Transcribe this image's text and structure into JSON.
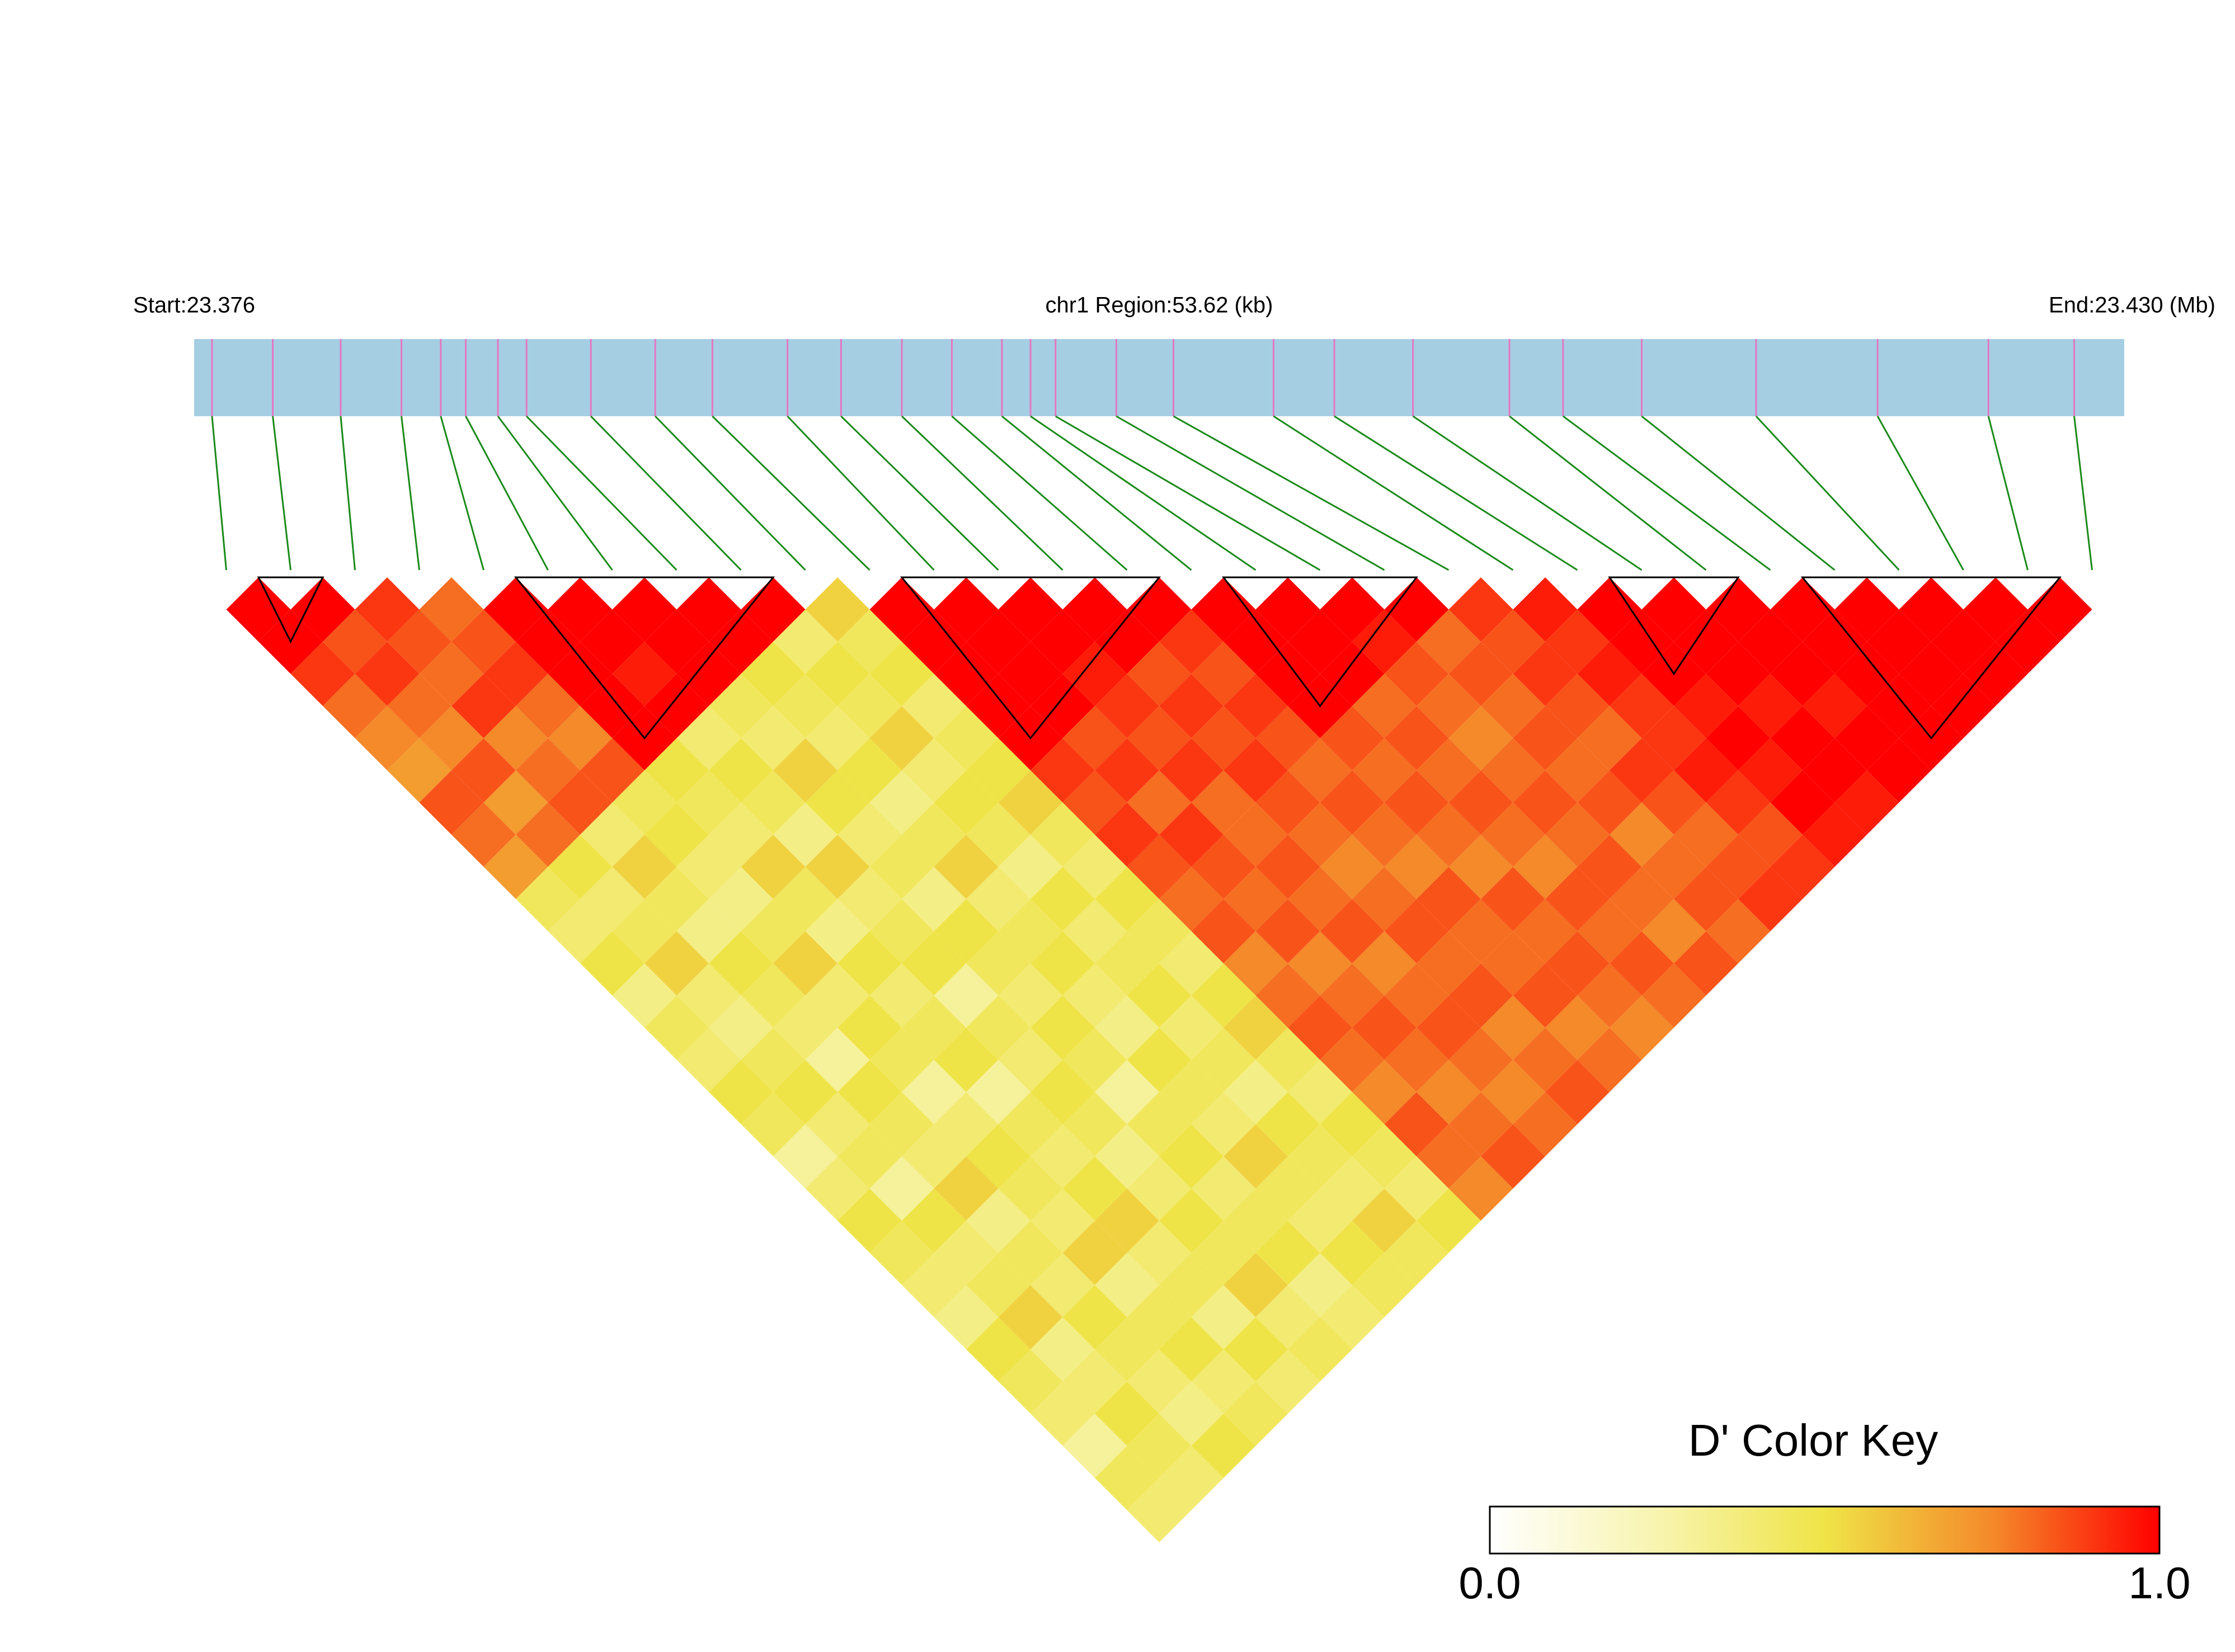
{
  "chart_data": {
    "type": "heatmap",
    "start_label": "Start:23.376",
    "region_label": "chr1 Region:53.62 (kb)",
    "end_label": "End:23.430 (Mb)",
    "xlim": [
      23.376,
      23.43
    ],
    "positions": [
      23.3765,
      23.3782,
      23.3801,
      23.3818,
      23.3829,
      23.3836,
      23.3845,
      23.3853,
      23.3871,
      23.3889,
      23.3905,
      23.3926,
      23.3941,
      23.3958,
      23.3972,
      23.3986,
      23.3994,
      23.4001,
      23.4018,
      23.4034,
      23.4062,
      23.4079,
      23.4101,
      23.4128,
      23.4143,
      23.4165,
      23.4197,
      23.4231,
      23.4262,
      23.4286
    ],
    "dprime": [
      [
        1,
        1,
        0.9,
        0.8,
        0.75,
        0.7,
        0.85,
        0.8,
        0.7,
        0.45,
        0.4,
        0.5,
        0.35,
        0.45,
        0.4,
        0.5,
        0.45,
        0.3,
        0.4,
        0.5,
        0.45,
        0.4,
        0.35,
        0.5,
        0.45,
        0.4,
        0.3,
        0.45,
        0.4
      ],
      [
        1,
        0.85,
        0.9,
        0.8,
        0.75,
        0.85,
        0.7,
        0.8,
        0.5,
        0.4,
        0.45,
        0.55,
        0.4,
        0.35,
        0.45,
        0.5,
        0.4,
        0.45,
        0.3,
        0.5,
        0.4,
        0.45,
        0.55,
        0.35,
        0.4,
        0.5,
        0.45,
        0.4
      ],
      [
        0.9,
        0.85,
        0.8,
        0.9,
        0.75,
        0.8,
        0.85,
        0.4,
        0.55,
        0.45,
        0.35,
        0.5,
        0.45,
        0.4,
        0.3,
        0.5,
        0.45,
        0.4,
        0.55,
        0.35,
        0.45,
        0.4,
        0.5,
        0.45,
        0.4,
        0.35,
        0.5
      ],
      [
        0.8,
        0.85,
        0.9,
        0.8,
        0.75,
        0.85,
        0.45,
        0.5,
        0.4,
        0.35,
        0.45,
        0.55,
        0.4,
        0.5,
        0.45,
        0.3,
        0.4,
        0.5,
        0.45,
        0.4,
        0.55,
        0.35,
        0.45,
        0.5,
        0.4,
        0.45
      ],
      [
        1,
        1,
        1,
        1,
        1,
        0.5,
        0.45,
        0.4,
        0.55,
        0.45,
        0.35,
        0.5,
        0.4,
        0.45,
        0.5,
        0.3,
        0.45,
        0.4,
        0.5,
        0.55,
        0.4,
        0.45,
        0.35,
        0.5,
        0.4
      ],
      [
        1,
        1,
        0.95,
        1,
        0.4,
        0.5,
        0.45,
        0.35,
        0.55,
        0.4,
        0.45,
        0.5,
        0.3,
        0.45,
        0.4,
        0.5,
        0.45,
        0.35,
        0.4,
        0.5,
        0.45,
        0.55,
        0.4,
        0.45
      ],
      [
        1,
        1,
        1,
        0.45,
        0.4,
        0.55,
        0.5,
        0.4,
        0.45,
        0.35,
        0.5,
        0.45,
        0.4,
        0.5,
        0.45,
        0.3,
        0.45,
        0.5,
        0.4,
        0.45,
        0.5,
        0.35,
        0.4
      ],
      [
        1,
        1,
        0.5,
        0.45,
        0.4,
        0.5,
        0.35,
        0.45,
        0.55,
        0.4,
        0.45,
        0.5,
        0.4,
        0.35,
        0.5,
        0.45,
        0.4,
        0.55,
        0.45,
        0.4,
        0.5,
        0.45
      ],
      [
        1,
        0.4,
        0.5,
        0.45,
        0.55,
        0.4,
        0.5,
        0.45,
        0.35,
        0.5,
        0.4,
        0.45,
        0.5,
        0.4,
        0.45,
        0.35,
        0.5,
        0.45,
        0.4,
        0.55,
        0.45
      ],
      [
        0.55,
        0.45,
        0.5,
        0.4,
        0.45,
        0.5,
        0.55,
        0.45,
        0.4,
        0.5,
        0.45,
        0.4,
        0.5,
        0.55,
        0.45,
        0.4,
        0.5,
        0.45,
        0.4,
        0.5
      ],
      [
        1,
        1,
        1,
        1,
        1,
        0.9,
        0.85,
        0.9,
        0.85,
        0.8,
        0.85,
        0.75,
        0.8,
        0.85,
        0.8,
        0.75,
        0.85,
        0.8,
        0.75
      ],
      [
        1,
        1,
        1,
        1,
        0.85,
        0.9,
        0.8,
        0.9,
        0.85,
        0.8,
        0.85,
        0.75,
        0.8,
        0.85,
        0.8,
        0.75,
        0.8,
        0.85
      ],
      [
        1,
        1,
        0.95,
        0.9,
        0.85,
        0.9,
        0.8,
        0.8,
        0.85,
        0.8,
        0.85,
        0.75,
        0.8,
        0.85,
        0.8,
        0.75,
        0.8
      ],
      [
        1,
        1,
        0.85,
        0.9,
        0.85,
        0.9,
        0.85,
        0.8,
        0.75,
        0.8,
        0.85,
        0.8,
        0.85,
        0.75,
        0.8,
        0.85
      ],
      [
        1,
        0.9,
        0.85,
        0.9,
        0.85,
        0.8,
        0.85,
        0.8,
        0.75,
        0.85,
        0.8,
        0.8,
        0.85,
        0.75,
        0.8
      ],
      [
        1,
        1,
        1,
        1,
        0.85,
        0.8,
        0.85,
        0.8,
        0.75,
        0.85,
        0.8,
        0.85,
        0.8,
        0.75
      ],
      [
        1,
        1,
        1,
        0.8,
        0.85,
        0.8,
        0.85,
        0.8,
        0.75,
        0.85,
        0.8,
        0.85,
        0.8
      ],
      [
        1,
        0.95,
        0.85,
        0.8,
        0.75,
        0.8,
        0.85,
        0.8,
        0.85,
        0.8,
        0.75,
        0.85
      ],
      [
        1,
        0.8,
        0.85,
        0.8,
        0.85,
        0.8,
        0.85,
        0.75,
        0.8,
        0.85,
        0.8
      ],
      [
        0.9,
        0.85,
        0.9,
        0.85,
        0.8,
        0.9,
        0.85,
        0.8,
        0.85,
        0.9
      ],
      [
        0.95,
        0.9,
        0.95,
        0.9,
        0.9,
        0.95,
        0.9,
        0.85,
        0.9
      ],
      [
        1,
        1,
        1,
        0.95,
        1,
        0.95,
        1,
        0.95
      ],
      [
        1,
        1,
        1,
        0.95,
        1,
        1,
        0.95
      ],
      [
        1,
        1,
        1,
        0.95,
        1,
        1
      ],
      [
        1,
        1,
        1,
        1,
        1
      ],
      [
        1,
        1,
        1,
        1
      ],
      [
        1,
        1,
        1
      ],
      [
        1,
        1
      ],
      [
        1
      ]
    ],
    "blocks": [
      [
        0,
        2
      ],
      [
        4,
        9
      ],
      [
        10,
        15
      ],
      [
        15,
        19
      ],
      [
        21,
        24
      ],
      [
        24,
        29
      ]
    ],
    "colors": [
      "#ffffff",
      "#f8f4b0",
      "#efe447",
      "#f48a2a",
      "#ff0000"
    ],
    "colorbar": {
      "title": "D' Color Key",
      "ticks": [
        {
          "value": 0,
          "label": "0.0"
        },
        {
          "value": 1,
          "label": "1.0"
        }
      ]
    }
  }
}
